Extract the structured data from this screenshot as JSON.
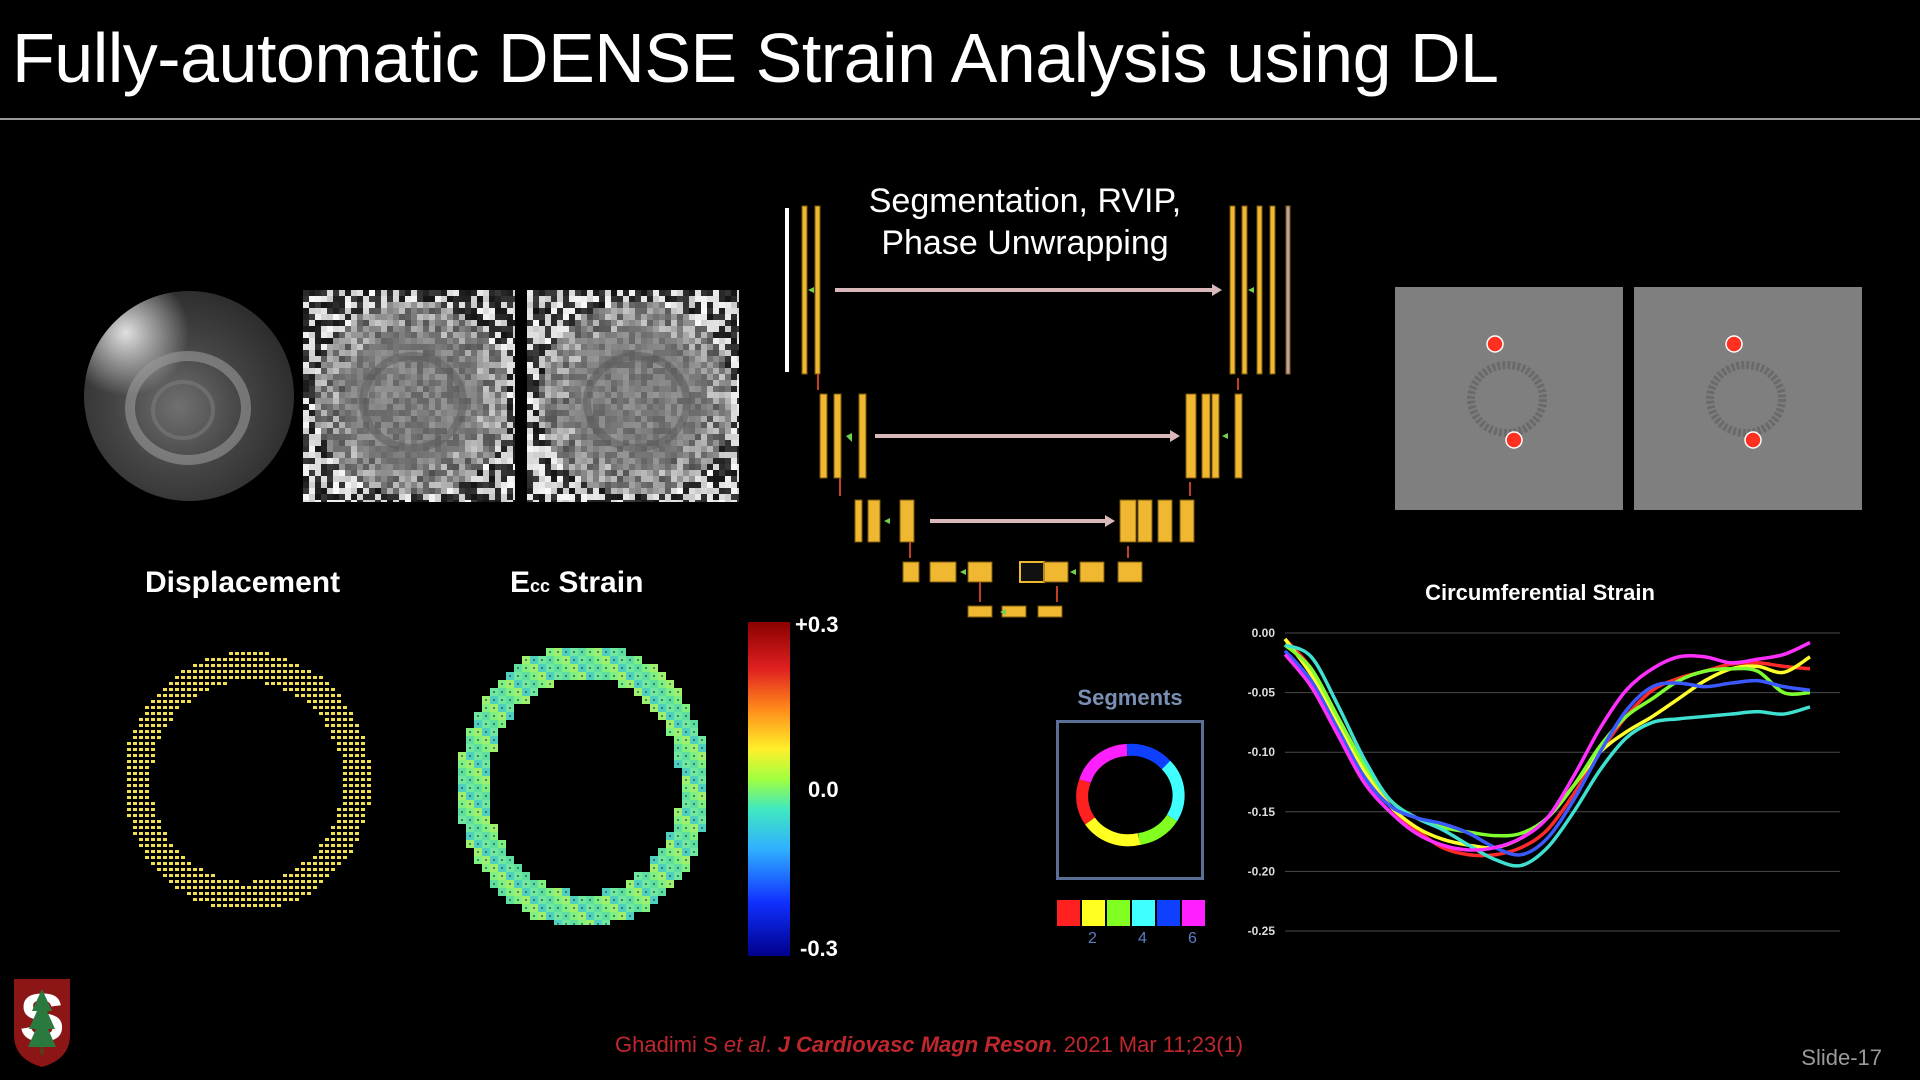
{
  "slide": {
    "title": "Fully-automatic DENSE Strain Analysis using DL",
    "slide_number": "Slide-17",
    "reference": {
      "authors": "Ghadimi S ",
      "etal": "et al",
      "dot": ". ",
      "journal": "J Cardiovasc Magn Reson",
      "details": ". 2021 Mar 11;23(1)"
    }
  },
  "labels": {
    "displacement": "Displacement",
    "ecc_strain_main": "E",
    "ecc_strain_sub": "cc",
    "ecc_strain_rest": " Strain",
    "unet_line1": "Segmentation, RVIP,",
    "unet_line2": "Phase Unwrapping"
  },
  "colorbar": {
    "max_label": "+0.3",
    "mid_label": "0.0",
    "min_label": "-0.3"
  },
  "segments": {
    "title": "Segments",
    "ticks": [
      "2",
      "4",
      "6"
    ],
    "colors": [
      "#ff2020",
      "#ffff20",
      "#80ff20",
      "#40ffff",
      "#1040ff",
      "#ff20ff"
    ]
  },
  "chart_data": {
    "type": "line",
    "title": "Circumferential Strain",
    "xlabel": "",
    "ylabel": "",
    "ylim": [
      -0.25,
      0.0
    ],
    "yticks": [
      "0.00",
      "-0.05",
      "-0.10",
      "-0.15",
      "-0.20",
      "-0.25"
    ],
    "ytick_values": [
      0.0,
      -0.05,
      -0.1,
      -0.15,
      -0.2,
      -0.25
    ],
    "x": [
      0,
      1,
      2,
      3,
      4,
      5,
      6,
      7,
      8,
      9,
      10,
      11,
      12,
      13,
      14,
      15,
      16,
      17,
      18,
      19,
      20
    ],
    "xlim": [
      0,
      20
    ],
    "series": [
      {
        "name": "Segment 1",
        "color": "#ff2a2a",
        "values": [
          -0.005,
          -0.03,
          -0.07,
          -0.11,
          -0.145,
          -0.165,
          -0.18,
          -0.186,
          -0.186,
          -0.18,
          -0.165,
          -0.135,
          -0.1,
          -0.07,
          -0.048,
          -0.038,
          -0.032,
          -0.026,
          -0.025,
          -0.028,
          -0.03
        ]
      },
      {
        "name": "Segment 2",
        "color": "#ffff2a",
        "values": [
          -0.005,
          -0.035,
          -0.075,
          -0.115,
          -0.145,
          -0.163,
          -0.173,
          -0.178,
          -0.18,
          -0.172,
          -0.155,
          -0.128,
          -0.1,
          -0.083,
          -0.07,
          -0.055,
          -0.04,
          -0.03,
          -0.028,
          -0.033,
          -0.02
        ]
      },
      {
        "name": "Segment 3",
        "color": "#80ff30",
        "values": [
          -0.01,
          -0.03,
          -0.07,
          -0.11,
          -0.14,
          -0.155,
          -0.163,
          -0.167,
          -0.17,
          -0.168,
          -0.155,
          -0.128,
          -0.095,
          -0.07,
          -0.055,
          -0.04,
          -0.032,
          -0.03,
          -0.032,
          -0.05,
          -0.05
        ]
      },
      {
        "name": "Segment 4",
        "color": "#40e0d0",
        "values": [
          -0.01,
          -0.02,
          -0.06,
          -0.105,
          -0.14,
          -0.155,
          -0.165,
          -0.178,
          -0.19,
          -0.195,
          -0.18,
          -0.15,
          -0.115,
          -0.088,
          -0.075,
          -0.072,
          -0.07,
          -0.068,
          -0.066,
          -0.068,
          -0.062
        ]
      },
      {
        "name": "Segment 5",
        "color": "#3a5aff",
        "values": [
          -0.015,
          -0.04,
          -0.08,
          -0.12,
          -0.145,
          -0.155,
          -0.16,
          -0.168,
          -0.18,
          -0.186,
          -0.172,
          -0.14,
          -0.1,
          -0.065,
          -0.045,
          -0.042,
          -0.045,
          -0.042,
          -0.04,
          -0.045,
          -0.048
        ]
      },
      {
        "name": "Segment 6",
        "color": "#ff30ff",
        "values": [
          -0.018,
          -0.045,
          -0.085,
          -0.125,
          -0.15,
          -0.168,
          -0.178,
          -0.182,
          -0.18,
          -0.172,
          -0.155,
          -0.12,
          -0.08,
          -0.048,
          -0.03,
          -0.02,
          -0.02,
          -0.025,
          -0.022,
          -0.018,
          -0.008
        ]
      }
    ]
  }
}
